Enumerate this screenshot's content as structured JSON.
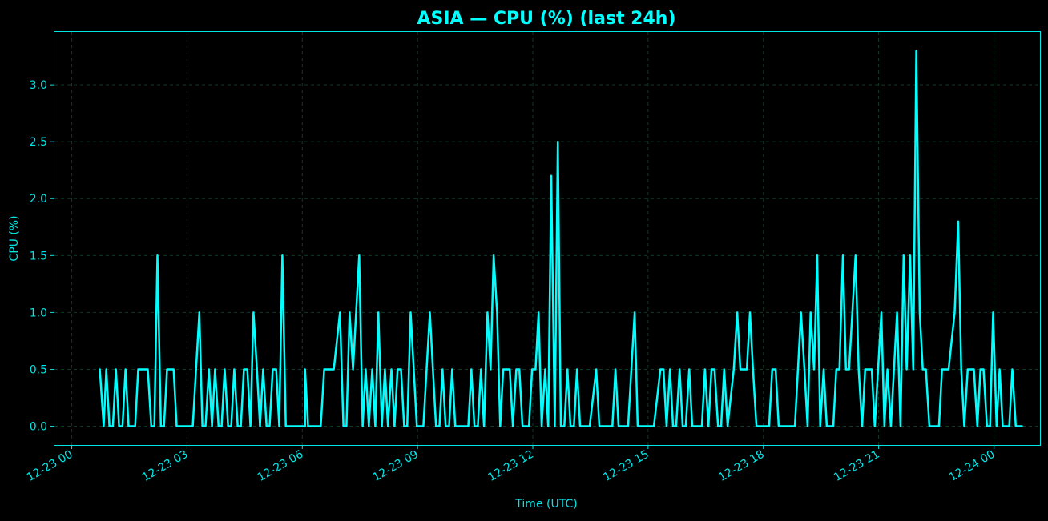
{
  "colors": {
    "background": "#000000",
    "accent": "#00ffff",
    "grid": "#0f3a26",
    "axis": "#00e5e5"
  },
  "chart_data": {
    "type": "line",
    "title": "ASIA — CPU (%) (last 24h)",
    "xlabel": "Time (UTC)",
    "ylabel": "CPU (%)",
    "x_ticks": [
      "12-23 00",
      "12-23 03",
      "12-23 06",
      "12-23 09",
      "12-23 12",
      "12-23 15",
      "12-23 18",
      "12-23 21",
      "12-24 00"
    ],
    "x_tick_hours": [
      0,
      3,
      6,
      9,
      12,
      15,
      18,
      21,
      24
    ],
    "y_ticks": [
      "0.0",
      "0.5",
      "1.0",
      "1.5",
      "2.0",
      "2.5",
      "3.0"
    ],
    "y_tick_values": [
      0,
      0.5,
      1.0,
      1.5,
      2.0,
      2.5,
      3.0
    ],
    "xlim_hours": [
      -0.45,
      25.2
    ],
    "ylim": [
      -0.165,
      3.465
    ],
    "grid": true,
    "series": [
      {
        "values": [
          [
            0.73,
            0.5
          ],
          [
            0.83,
            0
          ],
          [
            0.9,
            0.5
          ],
          [
            0.98,
            0
          ],
          [
            1.07,
            0
          ],
          [
            1.15,
            0.5
          ],
          [
            1.23,
            0
          ],
          [
            1.32,
            0
          ],
          [
            1.4,
            0.5
          ],
          [
            1.48,
            0
          ],
          [
            1.65,
            0
          ],
          [
            1.73,
            0.5
          ],
          [
            1.98,
            0.5
          ],
          [
            2.07,
            0
          ],
          [
            2.15,
            0
          ],
          [
            2.23,
            1.5
          ],
          [
            2.32,
            0
          ],
          [
            2.4,
            0
          ],
          [
            2.48,
            0.5
          ],
          [
            2.65,
            0.5
          ],
          [
            2.73,
            0
          ],
          [
            3.15,
            0
          ],
          [
            3.32,
            1.0
          ],
          [
            3.4,
            0
          ],
          [
            3.48,
            0
          ],
          [
            3.57,
            0.5
          ],
          [
            3.65,
            0
          ],
          [
            3.73,
            0.5
          ],
          [
            3.82,
            0
          ],
          [
            3.9,
            0
          ],
          [
            3.98,
            0.5
          ],
          [
            4.07,
            0
          ],
          [
            4.15,
            0
          ],
          [
            4.23,
            0.5
          ],
          [
            4.32,
            0
          ],
          [
            4.4,
            0
          ],
          [
            4.48,
            0.5
          ],
          [
            4.57,
            0.5
          ],
          [
            4.65,
            0
          ],
          [
            4.73,
            1.0
          ],
          [
            4.82,
            0.5
          ],
          [
            4.9,
            0
          ],
          [
            4.98,
            0.5
          ],
          [
            5.07,
            0
          ],
          [
            5.15,
            0
          ],
          [
            5.23,
            0.5
          ],
          [
            5.32,
            0.5
          ],
          [
            5.4,
            0
          ],
          [
            5.48,
            1.5
          ],
          [
            5.57,
            0
          ],
          [
            6.07,
            0
          ],
          [
            6.07,
            0.5
          ],
          [
            6.15,
            0
          ],
          [
            6.48,
            0
          ],
          [
            6.57,
            0.5
          ],
          [
            6.82,
            0.5
          ],
          [
            6.98,
            1.0
          ],
          [
            7.07,
            0
          ],
          [
            7.15,
            0
          ],
          [
            7.23,
            1.0
          ],
          [
            7.32,
            0.5
          ],
          [
            7.48,
            1.5
          ],
          [
            7.57,
            0
          ],
          [
            7.65,
            0.5
          ],
          [
            7.73,
            0
          ],
          [
            7.82,
            0.5
          ],
          [
            7.9,
            0
          ],
          [
            7.98,
            1.0
          ],
          [
            8.07,
            0
          ],
          [
            8.15,
            0.5
          ],
          [
            8.23,
            0
          ],
          [
            8.32,
            0.5
          ],
          [
            8.4,
            0
          ],
          [
            8.48,
            0.5
          ],
          [
            8.57,
            0.5
          ],
          [
            8.65,
            0
          ],
          [
            8.73,
            0
          ],
          [
            8.82,
            1.0
          ],
          [
            8.9,
            0.5
          ],
          [
            8.98,
            0
          ],
          [
            9.15,
            0
          ],
          [
            9.32,
            1.0
          ],
          [
            9.4,
            0.5
          ],
          [
            9.48,
            0
          ],
          [
            9.57,
            0
          ],
          [
            9.65,
            0.5
          ],
          [
            9.73,
            0
          ],
          [
            9.82,
            0
          ],
          [
            9.9,
            0.5
          ],
          [
            9.98,
            0
          ],
          [
            10.32,
            0
          ],
          [
            10.4,
            0.5
          ],
          [
            10.48,
            0
          ],
          [
            10.57,
            0
          ],
          [
            10.65,
            0.5
          ],
          [
            10.73,
            0
          ],
          [
            10.82,
            1.0
          ],
          [
            10.9,
            0.5
          ],
          [
            10.98,
            1.5
          ],
          [
            11.07,
            1.0
          ],
          [
            11.15,
            0
          ],
          [
            11.23,
            0.5
          ],
          [
            11.4,
            0.5
          ],
          [
            11.48,
            0
          ],
          [
            11.57,
            0.5
          ],
          [
            11.65,
            0.5
          ],
          [
            11.73,
            0
          ],
          [
            11.9,
            0
          ],
          [
            11.98,
            0.5
          ],
          [
            12.07,
            0.5
          ],
          [
            12.15,
            1.0
          ],
          [
            12.23,
            0
          ],
          [
            12.32,
            0.5
          ],
          [
            12.4,
            0
          ],
          [
            12.48,
            2.2
          ],
          [
            12.57,
            0
          ],
          [
            12.65,
            2.5
          ],
          [
            12.73,
            0
          ],
          [
            12.82,
            0
          ],
          [
            12.9,
            0.5
          ],
          [
            12.98,
            0
          ],
          [
            13.07,
            0
          ],
          [
            13.15,
            0.5
          ],
          [
            13.23,
            0
          ],
          [
            13.48,
            0
          ],
          [
            13.65,
            0.5
          ],
          [
            13.73,
            0
          ],
          [
            14.07,
            0
          ],
          [
            14.15,
            0.5
          ],
          [
            14.23,
            0
          ],
          [
            14.48,
            0
          ],
          [
            14.65,
            1.0
          ],
          [
            14.73,
            0
          ],
          [
            15.15,
            0
          ],
          [
            15.32,
            0.5
          ],
          [
            15.4,
            0.5
          ],
          [
            15.48,
            0
          ],
          [
            15.57,
            0.5
          ],
          [
            15.65,
            0
          ],
          [
            15.73,
            0
          ],
          [
            15.82,
            0.5
          ],
          [
            15.9,
            0
          ],
          [
            15.98,
            0
          ],
          [
            16.07,
            0.5
          ],
          [
            16.15,
            0
          ],
          [
            16.4,
            0
          ],
          [
            16.48,
            0.5
          ],
          [
            16.57,
            0
          ],
          [
            16.65,
            0.5
          ],
          [
            16.73,
            0.5
          ],
          [
            16.82,
            0
          ],
          [
            16.9,
            0
          ],
          [
            16.98,
            0.5
          ],
          [
            17.07,
            0
          ],
          [
            17.23,
            0.5
          ],
          [
            17.32,
            1.0
          ],
          [
            17.4,
            0.5
          ],
          [
            17.57,
            0.5
          ],
          [
            17.65,
            1.0
          ],
          [
            17.73,
            0.5
          ],
          [
            17.82,
            0
          ],
          [
            18.15,
            0
          ],
          [
            18.23,
            0.5
          ],
          [
            18.32,
            0.5
          ],
          [
            18.4,
            0
          ],
          [
            18.82,
            0
          ],
          [
            18.98,
            1.0
          ],
          [
            19.07,
            0.5
          ],
          [
            19.15,
            0
          ],
          [
            19.23,
            1.0
          ],
          [
            19.32,
            0.5
          ],
          [
            19.4,
            1.5
          ],
          [
            19.48,
            0
          ],
          [
            19.57,
            0.5
          ],
          [
            19.65,
            0
          ],
          [
            19.82,
            0
          ],
          [
            19.9,
            0.5
          ],
          [
            19.98,
            0.5
          ],
          [
            20.07,
            1.5
          ],
          [
            20.15,
            0.5
          ],
          [
            20.23,
            0.5
          ],
          [
            20.4,
            1.5
          ],
          [
            20.48,
            0.5
          ],
          [
            20.57,
            0
          ],
          [
            20.65,
            0.5
          ],
          [
            20.82,
            0.5
          ],
          [
            20.9,
            0
          ],
          [
            21.07,
            1.0
          ],
          [
            21.15,
            0
          ],
          [
            21.23,
            0.5
          ],
          [
            21.32,
            0
          ],
          [
            21.48,
            1.0
          ],
          [
            21.57,
            0
          ],
          [
            21.65,
            1.5
          ],
          [
            21.73,
            0.5
          ],
          [
            21.82,
            1.5
          ],
          [
            21.9,
            0.5
          ],
          [
            21.98,
            3.3
          ],
          [
            22.07,
            1.0
          ],
          [
            22.15,
            0.5
          ],
          [
            22.23,
            0.5
          ],
          [
            22.32,
            0
          ],
          [
            22.57,
            0
          ],
          [
            22.65,
            0.5
          ],
          [
            22.82,
            0.5
          ],
          [
            22.98,
            1.0
          ],
          [
            23.07,
            1.8
          ],
          [
            23.15,
            0.5
          ],
          [
            23.23,
            0
          ],
          [
            23.32,
            0.5
          ],
          [
            23.48,
            0.5
          ],
          [
            23.57,
            0
          ],
          [
            23.65,
            0.5
          ],
          [
            23.73,
            0.5
          ],
          [
            23.82,
            0
          ],
          [
            23.9,
            0
          ],
          [
            23.98,
            1.0
          ],
          [
            24.07,
            0
          ],
          [
            24.15,
            0.5
          ],
          [
            24.23,
            0
          ],
          [
            24.23,
            0
          ],
          [
            24.4,
            0
          ],
          [
            24.48,
            0.5
          ],
          [
            24.57,
            0
          ],
          [
            24.73,
            0
          ]
        ]
      }
    ]
  }
}
